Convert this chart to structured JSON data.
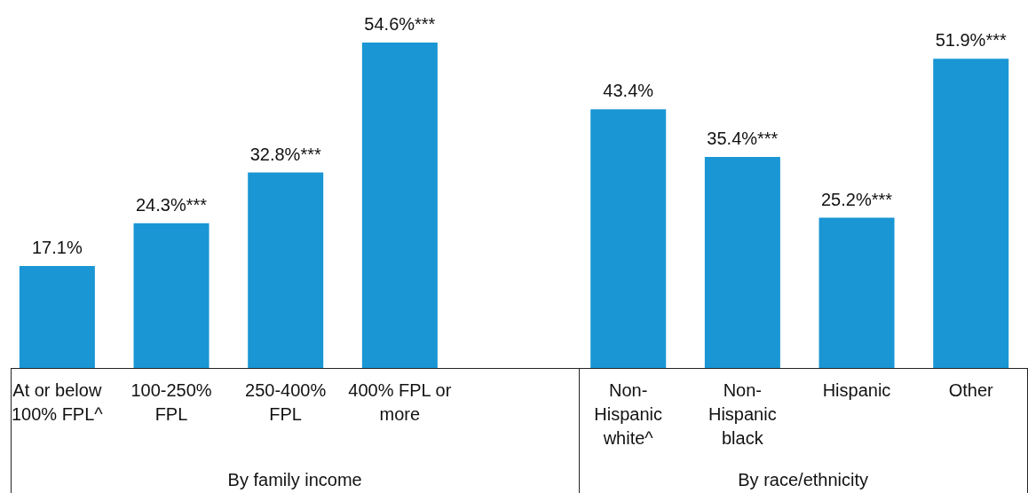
{
  "chart_data": {
    "type": "bar",
    "categories": [
      "At or below 100% FPL^",
      "100-250% FPL",
      "250-400% FPL",
      "400% FPL or more",
      null,
      "Non-Hispanic white^",
      "Non-Hispanic black",
      "Hispanic",
      "Other"
    ],
    "values": [
      17.1,
      24.3,
      32.8,
      54.6,
      null,
      43.4,
      35.4,
      25.2,
      51.9
    ],
    "value_labels": [
      "17.1%",
      "24.3%***",
      "32.8%***",
      "54.6%***",
      null,
      "43.4%",
      "35.4%***",
      "25.2%***",
      "51.9%***"
    ],
    "color": "#1a96d4",
    "annotations": [
      "By family income",
      "By race/ethnicity"
    ],
    "grid": false,
    "legend": false
  }
}
